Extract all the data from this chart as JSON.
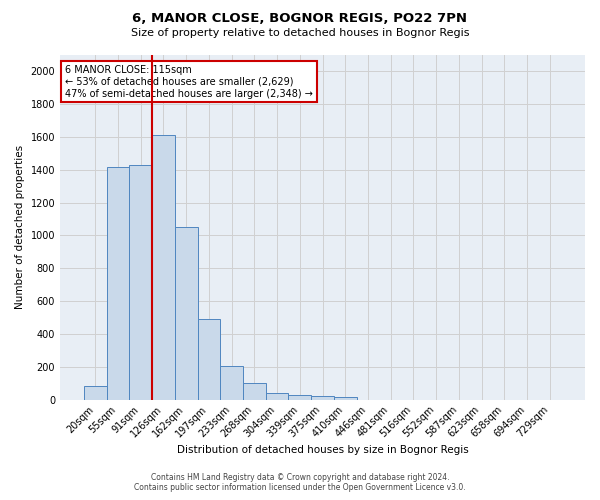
{
  "title1": "6, MANOR CLOSE, BOGNOR REGIS, PO22 7PN",
  "title2": "Size of property relative to detached houses in Bognor Regis",
  "xlabel": "Distribution of detached houses by size in Bognor Regis",
  "ylabel": "Number of detached properties",
  "footer1": "Contains HM Land Registry data © Crown copyright and database right 2024.",
  "footer2": "Contains public sector information licensed under the Open Government Licence v3.0.",
  "bar_labels": [
    "20sqm",
    "55sqm",
    "91sqm",
    "126sqm",
    "162sqm",
    "197sqm",
    "233sqm",
    "268sqm",
    "304sqm",
    "339sqm",
    "375sqm",
    "410sqm",
    "446sqm",
    "481sqm",
    "516sqm",
    "552sqm",
    "587sqm",
    "623sqm",
    "658sqm",
    "694sqm",
    "729sqm"
  ],
  "bar_values": [
    80,
    1420,
    1430,
    1610,
    1050,
    490,
    205,
    100,
    40,
    28,
    20,
    18,
    0,
    0,
    0,
    0,
    0,
    0,
    0,
    0,
    0
  ],
  "bar_color": "#c9d9ea",
  "bar_edge_color": "#4f86c0",
  "grid_color": "#d0d0d0",
  "vline_color": "#cc0000",
  "vline_position": 2.5,
  "annotation_text": "6 MANOR CLOSE: 115sqm\n← 53% of detached houses are smaller (2,629)\n47% of semi-detached houses are larger (2,348) →",
  "annotation_box_facecolor": "#ffffff",
  "annotation_box_edgecolor": "#cc0000",
  "ylim": [
    0,
    2100
  ],
  "yticks": [
    0,
    200,
    400,
    600,
    800,
    1000,
    1200,
    1400,
    1600,
    1800,
    2000
  ],
  "bg_color": "#ffffff",
  "plot_bg_color": "#e8eef5"
}
